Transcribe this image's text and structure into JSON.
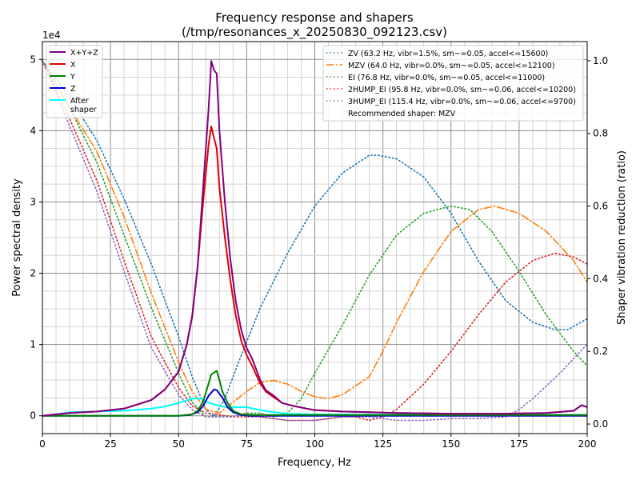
{
  "chart_data": {
    "type": "line",
    "title": "Frequency response and shapers",
    "subtitle": "(/tmp/resonances_x_20250830_092123.csv)",
    "xlabel": "Frequency, Hz",
    "ylabel_left": "Power spectral density",
    "ylabel_right": "Shaper vibration reduction (ratio)",
    "y_left_exponent": "1e4",
    "xlim": [
      0,
      200
    ],
    "ylim_left": [
      -0.25,
      5.25
    ],
    "ylim_right": [
      -0.0263,
      1.0526
    ],
    "x_ticks": [
      "0",
      "25",
      "50",
      "75",
      "100",
      "125",
      "150",
      "175",
      "200"
    ],
    "y_left_ticks": [
      "0",
      "1",
      "2",
      "3",
      "4",
      "5"
    ],
    "y_right_ticks": [
      "0.0",
      "0.2",
      "0.4",
      "0.6",
      "0.8",
      "1.0"
    ],
    "grid": true,
    "psd_legend_placement": "top-left",
    "shaper_legend_placement": "top-right",
    "psd_series": [
      {
        "name": "X+Y+Z",
        "color": "#800080",
        "points": [
          [
            0,
            0
          ],
          [
            10,
            0.04
          ],
          [
            20,
            0.06
          ],
          [
            30,
            0.1
          ],
          [
            40,
            0.22
          ],
          [
            45,
            0.37
          ],
          [
            50,
            0.62
          ],
          [
            53,
            1.0
          ],
          [
            55,
            1.4
          ],
          [
            57,
            2.1
          ],
          [
            59,
            3.2
          ],
          [
            61,
            4.3
          ],
          [
            62,
            4.98
          ],
          [
            63,
            4.85
          ],
          [
            64,
            4.8
          ],
          [
            65,
            4.0
          ],
          [
            67,
            3.0
          ],
          [
            69,
            2.2
          ],
          [
            71,
            1.6
          ],
          [
            73,
            1.2
          ],
          [
            75,
            0.95
          ],
          [
            77,
            0.8
          ],
          [
            80,
            0.5
          ],
          [
            82,
            0.36
          ],
          [
            85,
            0.28
          ],
          [
            88,
            0.18
          ],
          [
            92,
            0.14
          ],
          [
            97,
            0.1
          ],
          [
            100,
            0.08
          ],
          [
            110,
            0.06
          ],
          [
            120,
            0.05
          ],
          [
            130,
            0.04
          ],
          [
            150,
            0.03
          ],
          [
            170,
            0.03
          ],
          [
            185,
            0.04
          ],
          [
            195,
            0.07
          ],
          [
            198,
            0.15
          ],
          [
            200,
            0.12
          ]
        ]
      },
      {
        "name": "X",
        "color": "#e00000",
        "points": [
          [
            0,
            0
          ],
          [
            10,
            0.04
          ],
          [
            20,
            0.06
          ],
          [
            30,
            0.1
          ],
          [
            40,
            0.22
          ],
          [
            45,
            0.37
          ],
          [
            50,
            0.62
          ],
          [
            53,
            1.0
          ],
          [
            55,
            1.4
          ],
          [
            57,
            2.1
          ],
          [
            59,
            3.0
          ],
          [
            61,
            3.8
          ],
          [
            62,
            4.06
          ],
          [
            63,
            3.9
          ],
          [
            64,
            3.75
          ],
          [
            65,
            3.2
          ],
          [
            67,
            2.5
          ],
          [
            69,
            1.9
          ],
          [
            71,
            1.4
          ],
          [
            73,
            1.05
          ],
          [
            75,
            0.85
          ],
          [
            77,
            0.7
          ],
          [
            80,
            0.45
          ],
          [
            82,
            0.34
          ],
          [
            85,
            0.26
          ],
          [
            88,
            0.18
          ],
          [
            92,
            0.14
          ],
          [
            97,
            0.1
          ],
          [
            100,
            0.08
          ],
          [
            110,
            0.06
          ],
          [
            120,
            0.05
          ],
          [
            130,
            0.04
          ],
          [
            150,
            0.03
          ],
          [
            170,
            0.03
          ],
          [
            185,
            0.04
          ],
          [
            195,
            0.07
          ],
          [
            198,
            0.15
          ],
          [
            200,
            0.12
          ]
        ]
      },
      {
        "name": "Y",
        "color": "#008000",
        "points": [
          [
            0,
            0
          ],
          [
            50,
            0
          ],
          [
            55,
            0.02
          ],
          [
            57,
            0.07
          ],
          [
            59,
            0.2
          ],
          [
            61,
            0.45
          ],
          [
            62,
            0.58
          ],
          [
            64,
            0.63
          ],
          [
            65,
            0.5
          ],
          [
            66,
            0.35
          ],
          [
            68,
            0.18
          ],
          [
            70,
            0.07
          ],
          [
            73,
            0.02
          ],
          [
            76,
            0.01
          ],
          [
            200,
            0.01
          ]
        ]
      },
      {
        "name": "Z",
        "color": "#0000cc",
        "points": [
          [
            0,
            0
          ],
          [
            50,
            0
          ],
          [
            54,
            0.01
          ],
          [
            57,
            0.05
          ],
          [
            59,
            0.14
          ],
          [
            61,
            0.28
          ],
          [
            63,
            0.37
          ],
          [
            64,
            0.36
          ],
          [
            66,
            0.26
          ],
          [
            68,
            0.12
          ],
          [
            70,
            0.05
          ],
          [
            73,
            0.01
          ],
          [
            76,
            0
          ],
          [
            200,
            0
          ]
        ]
      },
      {
        "name": "After\nshaper",
        "color": "#00ffff",
        "points": [
          [
            0,
            0
          ],
          [
            5,
            0.02
          ],
          [
            10,
            0.05
          ],
          [
            20,
            0.06
          ],
          [
            30,
            0.07
          ],
          [
            40,
            0.1
          ],
          [
            45,
            0.13
          ],
          [
            50,
            0.18
          ],
          [
            55,
            0.24
          ],
          [
            58,
            0.24
          ],
          [
            60,
            0.2
          ],
          [
            63,
            0.16
          ],
          [
            66,
            0.13
          ],
          [
            70,
            0.12
          ],
          [
            75,
            0.12
          ],
          [
            80,
            0.08
          ],
          [
            85,
            0.05
          ],
          [
            90,
            0.03
          ],
          [
            100,
            0.02
          ],
          [
            150,
            0.01
          ],
          [
            200,
            0.01
          ]
        ]
      }
    ],
    "shaper_series": [
      {
        "name": "ZV (63.2 Hz, vibr=1.5%, sm~=0.05, accel<=15600)",
        "color": "#1f77b4",
        "dash": "dot",
        "points": [
          [
            0,
            1.0
          ],
          [
            10,
            0.9
          ],
          [
            20,
            0.78
          ],
          [
            30,
            0.62
          ],
          [
            40,
            0.44
          ],
          [
            50,
            0.24
          ],
          [
            55,
            0.13
          ],
          [
            60,
            0.04
          ],
          [
            63,
            0.02
          ],
          [
            67,
            0.07
          ],
          [
            72,
            0.17
          ],
          [
            80,
            0.32
          ],
          [
            90,
            0.47
          ],
          [
            100,
            0.6
          ],
          [
            110,
            0.69
          ],
          [
            120,
            0.74
          ],
          [
            123,
            0.74
          ],
          [
            130,
            0.73
          ],
          [
            140,
            0.68
          ],
          [
            150,
            0.58
          ],
          [
            160,
            0.45
          ],
          [
            170,
            0.34
          ],
          [
            180,
            0.28
          ],
          [
            188,
            0.26
          ],
          [
            193,
            0.26
          ],
          [
            200,
            0.29
          ]
        ]
      },
      {
        "name": "MZV (64.0 Hz, vibr=0.0%, sm~=0.05, accel<=12100)",
        "color": "#ff7f0e",
        "dash": "dashdot",
        "points": [
          [
            0,
            1.0
          ],
          [
            10,
            0.87
          ],
          [
            20,
            0.75
          ],
          [
            30,
            0.57
          ],
          [
            40,
            0.36
          ],
          [
            50,
            0.17
          ],
          [
            55,
            0.09
          ],
          [
            60,
            0.04
          ],
          [
            65,
            0.03
          ],
          [
            70,
            0.06
          ],
          [
            75,
            0.09
          ],
          [
            80,
            0.115
          ],
          [
            85,
            0.12
          ],
          [
            90,
            0.11
          ],
          [
            95,
            0.09
          ],
          [
            100,
            0.075
          ],
          [
            105,
            0.07
          ],
          [
            110,
            0.08
          ],
          [
            120,
            0.13
          ],
          [
            125,
            0.2
          ],
          [
            130,
            0.28
          ],
          [
            140,
            0.42
          ],
          [
            150,
            0.53
          ],
          [
            160,
            0.59
          ],
          [
            166,
            0.6
          ],
          [
            175,
            0.58
          ],
          [
            185,
            0.53
          ],
          [
            195,
            0.45
          ],
          [
            200,
            0.39
          ]
        ]
      },
      {
        "name": "EI (76.8 Hz, vibr=0.0%, sm~=0.05, accel<=11000)",
        "color": "#2ca02c",
        "dash": "dot",
        "points": [
          [
            0,
            1.0
          ],
          [
            10,
            0.87
          ],
          [
            20,
            0.72
          ],
          [
            30,
            0.52
          ],
          [
            40,
            0.32
          ],
          [
            50,
            0.14
          ],
          [
            55,
            0.06
          ],
          [
            60,
            0.02
          ],
          [
            65,
            0.02
          ],
          [
            70,
            0.02
          ],
          [
            75,
            0.03
          ],
          [
            80,
            0.03
          ],
          [
            85,
            0.02
          ],
          [
            90,
            0.03
          ],
          [
            95,
            0.07
          ],
          [
            100,
            0.14
          ],
          [
            110,
            0.27
          ],
          [
            120,
            0.41
          ],
          [
            130,
            0.52
          ],
          [
            140,
            0.58
          ],
          [
            150,
            0.6
          ],
          [
            157,
            0.59
          ],
          [
            165,
            0.53
          ],
          [
            175,
            0.42
          ],
          [
            185,
            0.3
          ],
          [
            195,
            0.2
          ],
          [
            200,
            0.16
          ]
        ]
      },
      {
        "name": "2HUMP_EI (95.8 Hz, vibr=0.0%, sm~=0.06, accel<=10200)",
        "color": "#d62728",
        "dash": "dot",
        "points": [
          [
            0,
            1.0
          ],
          [
            10,
            0.84
          ],
          [
            20,
            0.67
          ],
          [
            30,
            0.45
          ],
          [
            40,
            0.24
          ],
          [
            50,
            0.1
          ],
          [
            55,
            0.05
          ],
          [
            60,
            0.03
          ],
          [
            70,
            0.02
          ],
          [
            80,
            0.02
          ],
          [
            90,
            0.01
          ],
          [
            100,
            0.01
          ],
          [
            110,
            0.02
          ],
          [
            115,
            0.02
          ],
          [
            120,
            0.01
          ],
          [
            125,
            0.02
          ],
          [
            130,
            0.04
          ],
          [
            140,
            0.11
          ],
          [
            150,
            0.2
          ],
          [
            160,
            0.3
          ],
          [
            170,
            0.39
          ],
          [
            180,
            0.45
          ],
          [
            188,
            0.47
          ],
          [
            195,
            0.46
          ],
          [
            200,
            0.44
          ]
        ]
      },
      {
        "name": "3HUMP_EI (115.4 Hz, vibr=0.0%, sm~=0.06, accel<=9700)",
        "color": "#9467bd",
        "dash": "dot",
        "points": [
          [
            0,
            1.0
          ],
          [
            10,
            0.82
          ],
          [
            20,
            0.64
          ],
          [
            30,
            0.42
          ],
          [
            40,
            0.21
          ],
          [
            50,
            0.08
          ],
          [
            55,
            0.04
          ],
          [
            60,
            0.02
          ],
          [
            70,
            0.02
          ],
          [
            75,
            0.03
          ],
          [
            80,
            0.02
          ],
          [
            90,
            0.01
          ],
          [
            100,
            0.01
          ],
          [
            110,
            0.02
          ],
          [
            120,
            0.02
          ],
          [
            130,
            0.01
          ],
          [
            140,
            0.01
          ],
          [
            150,
            0.015
          ],
          [
            160,
            0.015
          ],
          [
            170,
            0.02
          ],
          [
            175,
            0.04
          ],
          [
            180,
            0.07
          ],
          [
            190,
            0.14
          ],
          [
            200,
            0.22
          ]
        ]
      }
    ],
    "shaper_legend_note": "Recommended shaper: MZV"
  }
}
